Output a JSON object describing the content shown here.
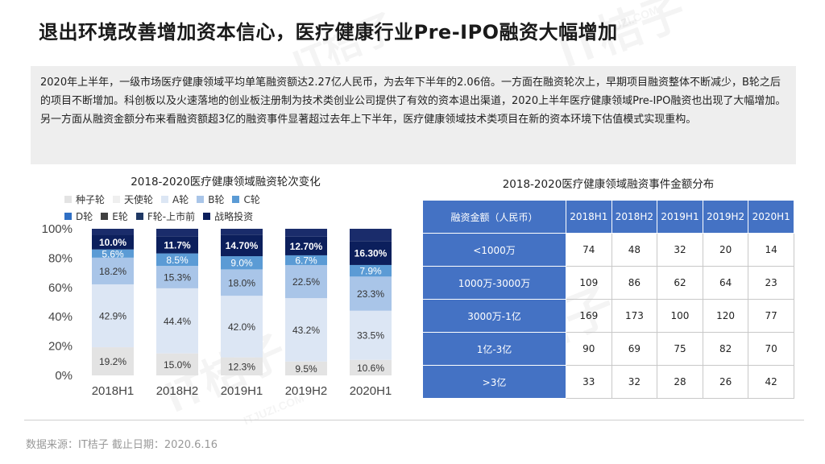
{
  "title": "退出环境改善增加资本信心，医疗健康行业Pre-IPO融资大幅增加",
  "summary": "2020年上半年，一级市场医疗健康领域平均单笔融资额达2.27亿人民币，为去年下半年的2.06倍。一方面在融资轮次上，早期项目融资整体不断减少，B轮之后的项目不断增加。科创板以及火速落地的创业板注册制为技术类创业公司提供了有效的资本退出渠道，2020上半年医疗健康领域Pre-IPO融资也出现了大幅增加。另一方面从融资金额分布来看融资额超3亿的融资事件显著超过去年上下半年，医疗健康领域技术类项目在新的资本环境下估值模式实现重构。",
  "watermark": [
    "IT桔子",
    "ITJUZI.COM"
  ],
  "chart_data": {
    "type": "bar",
    "stacked": true,
    "title": "2018-2020医疗健康领域融资轮次变化",
    "categories": [
      "2018H1",
      "2018H2",
      "2019H1",
      "2019H2",
      "2020H1"
    ],
    "ylim": [
      0,
      100
    ],
    "yticks": [
      "0%",
      "20%",
      "40%",
      "60%",
      "80%",
      "100%"
    ],
    "legend_position": "top",
    "series": [
      {
        "name": "种子轮",
        "color": "#e3e3e3",
        "values": [
          19.2,
          15.0,
          12.3,
          9.5,
          10.6
        ],
        "labels": [
          "19.2%",
          "15.0%",
          "12.3%",
          "9.5%",
          "10.6%"
        ]
      },
      {
        "name": "天使轮",
        "color": "#efefef",
        "values": [
          null,
          null,
          null,
          null,
          null
        ],
        "labels": [
          "",
          "",
          "",
          "",
          ""
        ]
      },
      {
        "name": "A轮",
        "color": "#dce6f4",
        "values": [
          42.9,
          44.4,
          42.0,
          43.2,
          33.5
        ],
        "labels": [
          "42.9%",
          "44.4%",
          "42.0%",
          "43.2%",
          "33.5%"
        ]
      },
      {
        "name": "B轮",
        "color": "#a9c5e8",
        "values": [
          18.2,
          15.3,
          18.0,
          22.5,
          23.3
        ],
        "labels": [
          "18.2%",
          "15.3%",
          "18.0%",
          "22.5%",
          "23.3%"
        ]
      },
      {
        "name": "C轮",
        "color": "#5b9bd5",
        "values": [
          5.6,
          8.5,
          9.0,
          6.7,
          7.9
        ],
        "labels": [
          "5.6%",
          "8.5%",
          "9.0%",
          "6.7%",
          "7.9%"
        ]
      },
      {
        "name": "D轮",
        "color": "#2f6fc4",
        "values": [
          null,
          null,
          null,
          null,
          null
        ],
        "labels": [
          "",
          "",
          "",
          "",
          ""
        ]
      },
      {
        "name": "E轮",
        "color": "#404040",
        "values": [
          null,
          null,
          null,
          null,
          null
        ],
        "labels": [
          "",
          "",
          "",
          "",
          ""
        ]
      },
      {
        "name": "F轮-上市前",
        "color": "#1f3864",
        "values": [
          null,
          null,
          null,
          null,
          null
        ],
        "labels": [
          "",
          "",
          "",
          "",
          ""
        ]
      },
      {
        "name": "战略投资",
        "color": "#0c1f5c",
        "values": [
          10.0,
          11.7,
          14.7,
          12.7,
          16.3
        ],
        "labels": [
          "10.0%",
          "11.7%",
          "14.70%",
          "12.70%",
          "16.30%"
        ]
      }
    ]
  },
  "table": {
    "title": "2018-2020医疗健康领域融资事件金额分布",
    "headers": [
      "融资金额（人民币）",
      "2018H1",
      "2018H2",
      "2019H1",
      "2019H2",
      "2020H1"
    ],
    "rows": [
      [
        "<1000万",
        "74",
        "48",
        "32",
        "20",
        "14"
      ],
      [
        "1000万-3000万",
        "109",
        "86",
        "62",
        "64",
        "23"
      ],
      [
        "3000万-1亿",
        "169",
        "173",
        "100",
        "120",
        "77"
      ],
      [
        "1亿-3亿",
        "90",
        "69",
        "75",
        "82",
        "70"
      ],
      [
        ">3亿",
        "33",
        "32",
        "28",
        "26",
        "42"
      ]
    ]
  },
  "source": "数据来源：IT桔子  截止日期：2020.6.16"
}
